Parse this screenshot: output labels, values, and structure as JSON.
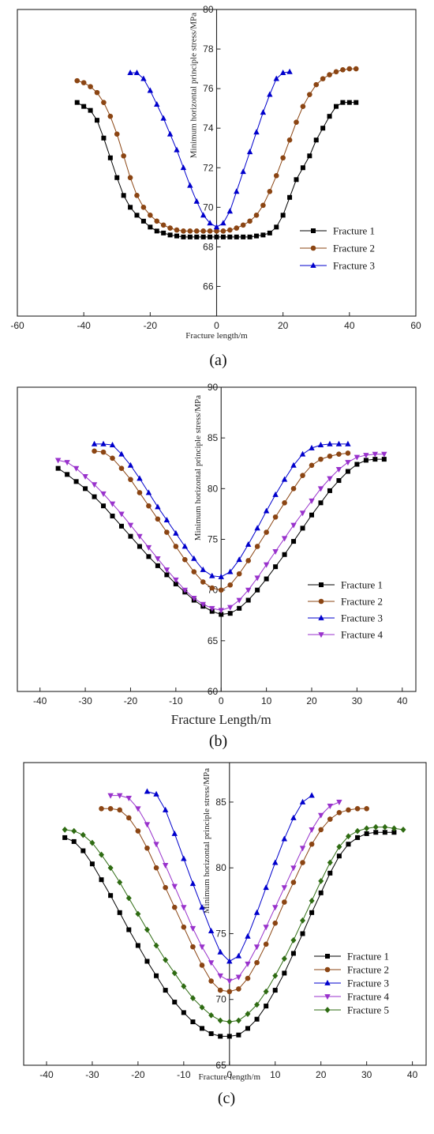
{
  "chart_data": [
    {
      "type": "line",
      "panel_label": "a",
      "xlabel": "Fracture length/m",
      "ylabel": "Minimum horizontal principle stress/MPa",
      "xlim": [
        -60,
        60
      ],
      "ylim": [
        64.5,
        80
      ],
      "xticks": [
        -60,
        -40,
        -20,
        0,
        20,
        40,
        60
      ],
      "yticks": [
        66,
        68,
        70,
        72,
        74,
        76,
        78,
        80
      ],
      "legend_position": "lower-right",
      "series": [
        {
          "name": "Fracture 1",
          "color": "#000000",
          "marker": "square",
          "x": [
            -42,
            -40,
            -38,
            -36,
            -34,
            -32,
            -30,
            -28,
            -26,
            -24,
            -22,
            -20,
            -18,
            -16,
            -14,
            -12,
            -10,
            -8,
            -6,
            -4,
            -2,
            0,
            2,
            4,
            6,
            8,
            10,
            12,
            14,
            16,
            18,
            20,
            22,
            24,
            26,
            28,
            30,
            32,
            34,
            36,
            38,
            40,
            42
          ],
          "y": [
            75.3,
            75.1,
            74.9,
            74.4,
            73.5,
            72.5,
            71.5,
            70.6,
            70.0,
            69.6,
            69.3,
            69.0,
            68.8,
            68.7,
            68.6,
            68.55,
            68.5,
            68.5,
            68.5,
            68.5,
            68.5,
            68.5,
            68.5,
            68.5,
            68.5,
            68.5,
            68.5,
            68.55,
            68.6,
            68.7,
            69.0,
            69.6,
            70.5,
            71.4,
            72.0,
            72.6,
            73.4,
            74.0,
            74.6,
            75.1,
            75.3,
            75.3,
            75.3
          ]
        },
        {
          "name": "Fracture 2",
          "color": "#8b4513",
          "marker": "circle",
          "x": [
            -42,
            -40,
            -38,
            -36,
            -34,
            -32,
            -30,
            -28,
            -26,
            -24,
            -22,
            -20,
            -18,
            -16,
            -14,
            -12,
            -10,
            -8,
            -6,
            -4,
            -2,
            0,
            2,
            4,
            6,
            8,
            10,
            12,
            14,
            16,
            18,
            20,
            22,
            24,
            26,
            28,
            30,
            32,
            34,
            36,
            38,
            40,
            42
          ],
          "y": [
            76.4,
            76.3,
            76.1,
            75.8,
            75.3,
            74.6,
            73.7,
            72.6,
            71.5,
            70.6,
            70.0,
            69.6,
            69.3,
            69.1,
            68.95,
            68.85,
            68.8,
            68.8,
            68.8,
            68.8,
            68.8,
            68.8,
            68.8,
            68.85,
            68.95,
            69.1,
            69.3,
            69.6,
            70.1,
            70.8,
            71.6,
            72.5,
            73.4,
            74.3,
            75.1,
            75.7,
            76.2,
            76.5,
            76.7,
            76.85,
            76.95,
            77.0,
            77.0
          ]
        },
        {
          "name": "Fracture 3",
          "color": "#0000cc",
          "marker": "triangle-up",
          "x": [
            -26,
            -24,
            -22,
            -20,
            -18,
            -16,
            -14,
            -12,
            -10,
            -8,
            -6,
            -4,
            -2,
            0,
            2,
            4,
            6,
            8,
            10,
            12,
            14,
            16,
            18,
            20,
            22
          ],
          "y": [
            76.8,
            76.8,
            76.5,
            75.9,
            75.2,
            74.5,
            73.7,
            72.9,
            72.0,
            71.1,
            70.3,
            69.6,
            69.2,
            69.0,
            69.2,
            69.8,
            70.8,
            71.8,
            72.8,
            73.8,
            74.8,
            75.7,
            76.5,
            76.8,
            76.85
          ]
        }
      ]
    },
    {
      "type": "line",
      "panel_label": "b",
      "xlabel": "Fracture Length/m",
      "ylabel": "Minimum horizontal principle stress/MPa",
      "xlim": [
        -45,
        43
      ],
      "ylim": [
        60,
        90
      ],
      "xticks": [
        -40,
        -30,
        -20,
        -10,
        0,
        10,
        20,
        30,
        40
      ],
      "yticks": [
        60,
        65,
        70,
        75,
        80,
        85,
        90
      ],
      "legend_position": "lower-right",
      "series": [
        {
          "name": "Fracture 1",
          "color": "#000000",
          "marker": "square",
          "x": [
            -36,
            -34,
            -32,
            -30,
            -28,
            -26,
            -24,
            -22,
            -20,
            -18,
            -16,
            -14,
            -12,
            -10,
            -8,
            -6,
            -4,
            -2,
            0,
            2,
            4,
            6,
            8,
            10,
            12,
            14,
            16,
            18,
            20,
            22,
            24,
            26,
            28,
            30,
            32,
            34,
            36
          ],
          "y": [
            82.0,
            81.4,
            80.7,
            80.0,
            79.2,
            78.3,
            77.3,
            76.3,
            75.3,
            74.3,
            73.3,
            72.4,
            71.5,
            70.6,
            69.8,
            69.0,
            68.4,
            67.9,
            67.6,
            67.7,
            68.2,
            69.0,
            70.0,
            71.1,
            72.3,
            73.5,
            74.8,
            76.1,
            77.4,
            78.6,
            79.8,
            80.8,
            81.7,
            82.4,
            82.8,
            82.9,
            82.9
          ]
        },
        {
          "name": "Fracture 2",
          "color": "#8b4513",
          "marker": "circle",
          "x": [
            -28,
            -26,
            -24,
            -22,
            -20,
            -18,
            -16,
            -14,
            -12,
            -10,
            -8,
            -6,
            -4,
            -2,
            0,
            2,
            4,
            6,
            8,
            10,
            12,
            14,
            16,
            18,
            20,
            22,
            24,
            26,
            28
          ],
          "y": [
            83.7,
            83.6,
            83.0,
            82.0,
            80.9,
            79.6,
            78.3,
            77.0,
            75.7,
            74.3,
            73.0,
            71.8,
            70.8,
            70.2,
            70.0,
            70.5,
            71.6,
            72.9,
            74.3,
            75.7,
            77.2,
            78.6,
            80.0,
            81.3,
            82.3,
            82.9,
            83.2,
            83.4,
            83.5
          ]
        },
        {
          "name": "Fracture 3",
          "color": "#0000cc",
          "marker": "triangle-up",
          "x": [
            -28,
            -26,
            -24,
            -22,
            -20,
            -18,
            -16,
            -14,
            -12,
            -10,
            -8,
            -6,
            -4,
            -2,
            0,
            2,
            4,
            6,
            8,
            10,
            12,
            14,
            16,
            18,
            20,
            22,
            24,
            26,
            28
          ],
          "y": [
            84.4,
            84.4,
            84.3,
            83.4,
            82.3,
            81.0,
            79.6,
            78.2,
            76.9,
            75.6,
            74.3,
            73.1,
            72.0,
            71.4,
            71.3,
            71.8,
            73.0,
            74.5,
            76.1,
            77.8,
            79.4,
            80.9,
            82.3,
            83.4,
            84.0,
            84.3,
            84.4,
            84.4,
            84.4
          ]
        },
        {
          "name": "Fracture 4",
          "color": "#9932cc",
          "marker": "triangle-down",
          "x": [
            -36,
            -34,
            -32,
            -30,
            -28,
            -26,
            -24,
            -22,
            -20,
            -18,
            -16,
            -14,
            -12,
            -10,
            -8,
            -6,
            -4,
            -2,
            0,
            2,
            4,
            6,
            8,
            10,
            12,
            14,
            16,
            18,
            20,
            22,
            24,
            26,
            28,
            30,
            32,
            34,
            36
          ],
          "y": [
            82.8,
            82.6,
            82.0,
            81.2,
            80.4,
            79.5,
            78.5,
            77.5,
            76.4,
            75.3,
            74.2,
            73.1,
            72.0,
            71.0,
            70.0,
            69.2,
            68.6,
            68.2,
            68.0,
            68.3,
            69.0,
            70.0,
            71.2,
            72.5,
            73.8,
            75.1,
            76.4,
            77.6,
            78.8,
            80.0,
            81.0,
            81.9,
            82.6,
            83.1,
            83.3,
            83.4,
            83.4
          ]
        }
      ]
    },
    {
      "type": "line",
      "panel_label": "c",
      "xlabel": "Fracture length/m",
      "ylabel": "Minimum horizontal principle stress/MPa",
      "xlim": [
        -45,
        43
      ],
      "ylim": [
        65,
        88
      ],
      "xticks": [
        -40,
        -30,
        -20,
        -10,
        0,
        10,
        20,
        30,
        40
      ],
      "yticks": [
        65,
        70,
        75,
        80,
        85
      ],
      "legend_position": "lower-right",
      "series": [
        {
          "name": "Fracture 1",
          "color": "#000000",
          "marker": "square",
          "x": [
            -36,
            -34,
            -32,
            -30,
            -28,
            -26,
            -24,
            -22,
            -20,
            -18,
            -16,
            -14,
            -12,
            -10,
            -8,
            -6,
            -4,
            -2,
            0,
            2,
            4,
            6,
            8,
            10,
            12,
            14,
            16,
            18,
            20,
            22,
            24,
            26,
            28,
            30,
            32,
            34,
            36
          ],
          "y": [
            82.3,
            82.0,
            81.3,
            80.3,
            79.1,
            77.9,
            76.6,
            75.3,
            74.1,
            72.9,
            71.8,
            70.7,
            69.8,
            69.0,
            68.3,
            67.8,
            67.4,
            67.2,
            67.2,
            67.3,
            67.8,
            68.5,
            69.5,
            70.7,
            72.0,
            73.5,
            75.0,
            76.6,
            78.1,
            79.6,
            80.9,
            81.8,
            82.3,
            82.6,
            82.7,
            82.7,
            82.7
          ]
        },
        {
          "name": "Fracture 2",
          "color": "#8b4513",
          "marker": "circle",
          "x": [
            -28,
            -26,
            -24,
            -22,
            -20,
            -18,
            -16,
            -14,
            -12,
            -10,
            -8,
            -6,
            -4,
            -2,
            0,
            2,
            4,
            6,
            8,
            10,
            12,
            14,
            16,
            18,
            20,
            22,
            24,
            26,
            28,
            30
          ],
          "y": [
            84.5,
            84.5,
            84.4,
            83.8,
            82.8,
            81.5,
            80.0,
            78.5,
            77.0,
            75.5,
            74.0,
            72.6,
            71.4,
            70.7,
            70.6,
            70.8,
            71.6,
            72.8,
            74.2,
            75.8,
            77.4,
            78.9,
            80.4,
            81.8,
            82.9,
            83.7,
            84.2,
            84.4,
            84.5,
            84.5
          ]
        },
        {
          "name": "Fracture 3",
          "color": "#0000cc",
          "marker": "triangle-up",
          "x": [
            -18,
            -16,
            -14,
            -12,
            -10,
            -8,
            -6,
            -4,
            -2,
            0,
            2,
            4,
            6,
            8,
            10,
            12,
            14,
            16,
            18
          ],
          "y": [
            85.8,
            85.6,
            84.4,
            82.6,
            80.7,
            78.8,
            77.0,
            75.2,
            73.6,
            72.9,
            73.3,
            74.8,
            76.6,
            78.5,
            80.4,
            82.2,
            83.8,
            85.0,
            85.5
          ]
        },
        {
          "name": "Fracture 4",
          "color": "#9932cc",
          "marker": "triangle-down",
          "x": [
            -26,
            -24,
            -22,
            -20,
            -18,
            -16,
            -14,
            -12,
            -10,
            -8,
            -6,
            -4,
            -2,
            0,
            2,
            4,
            6,
            8,
            10,
            12,
            14,
            16,
            18,
            20,
            22,
            24
          ],
          "y": [
            85.5,
            85.5,
            85.3,
            84.5,
            83.3,
            81.8,
            80.2,
            78.6,
            77.0,
            75.4,
            74.0,
            72.8,
            71.8,
            71.4,
            71.7,
            72.7,
            74.0,
            75.5,
            77.0,
            78.5,
            80.0,
            81.5,
            82.9,
            84.0,
            84.7,
            85.0
          ]
        },
        {
          "name": "Fracture 5",
          "color": "#2e6b12",
          "marker": "diamond",
          "x": [
            -36,
            -34,
            -32,
            -30,
            -28,
            -26,
            -24,
            -22,
            -20,
            -18,
            -16,
            -14,
            -12,
            -10,
            -8,
            -6,
            -4,
            -2,
            0,
            2,
            4,
            6,
            8,
            10,
            12,
            14,
            16,
            18,
            20,
            22,
            24,
            26,
            28,
            30,
            32,
            34,
            36,
            38
          ],
          "y": [
            82.9,
            82.8,
            82.5,
            81.9,
            81.0,
            80.0,
            78.9,
            77.7,
            76.5,
            75.3,
            74.1,
            73.0,
            72.0,
            71.0,
            70.1,
            69.4,
            68.8,
            68.4,
            68.3,
            68.4,
            68.9,
            69.6,
            70.6,
            71.8,
            73.1,
            74.5,
            76.0,
            77.5,
            79.0,
            80.4,
            81.6,
            82.4,
            82.8,
            83.0,
            83.1,
            83.1,
            83.0,
            82.9
          ]
        }
      ]
    }
  ]
}
